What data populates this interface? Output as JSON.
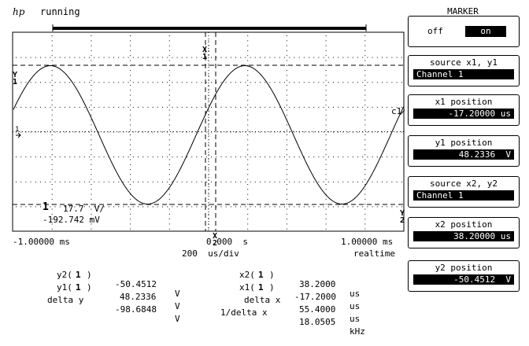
{
  "header": {
    "logo": "hp",
    "status": "running"
  },
  "grid": {
    "marker_labels": {
      "y1": "Y",
      "y1_sub": "1",
      "y2": "Y",
      "y2_sub": "2",
      "x1": "X",
      "x1_sub": "1",
      "x2": "X",
      "x2_sub": "2"
    },
    "channel_label": "c1",
    "ground_marker": "1",
    "ch1_scale": "1",
    "ch1_scale_text": "17.7  V/",
    "ch1_offset_text": "-192.742 mV"
  },
  "axis": {
    "left_time": "-1.00000 ms",
    "center_time": "0.000  s",
    "right_time": "1.00000 ms",
    "timebase": "200  us/div",
    "mode": "realtime"
  },
  "measurements": {
    "left": [
      {
        "label": "y2(",
        "ch": "1",
        "close": ")",
        "value": "-50.4512",
        "unit": "V"
      },
      {
        "label": "y1(",
        "ch": "1",
        "close": ")",
        "value": "48.2336",
        "unit": "V"
      },
      {
        "label": "delta y",
        "ch": "",
        "close": "",
        "value": "-98.6848",
        "unit": "V"
      }
    ],
    "right": [
      {
        "label": "x2(",
        "ch": "1",
        "close": ")",
        "value": "38.2000",
        "unit": "us"
      },
      {
        "label": "x1(",
        "ch": "1",
        "close": ")",
        "value": "-17.2000",
        "unit": "us"
      },
      {
        "label": "delta x",
        "ch": "",
        "close": "",
        "value": "55.4000",
        "unit": "us"
      },
      {
        "label": "1/delta x",
        "ch": "",
        "close": "",
        "value": "18.0505",
        "unit": "kHz"
      }
    ]
  },
  "softkeys": {
    "menu_title": "MARKER",
    "marker_off": "off",
    "marker_on": "on",
    "source_x1y1_label": "source x1, y1",
    "source_x1y1_value": "Channel 1",
    "x1_position_label": "x1 position",
    "x1_position_value": "-17.20000 us",
    "y1_position_label": "y1 position",
    "y1_position_value": "48.2336  V",
    "source_x2y2_label": "source x2, y2",
    "source_x2y2_value": "Channel 1",
    "x2_position_label": "x2 position",
    "x2_position_value": "38.20000 us",
    "y2_position_label": "y2 position",
    "y2_position_value": "-50.4512  V"
  }
}
